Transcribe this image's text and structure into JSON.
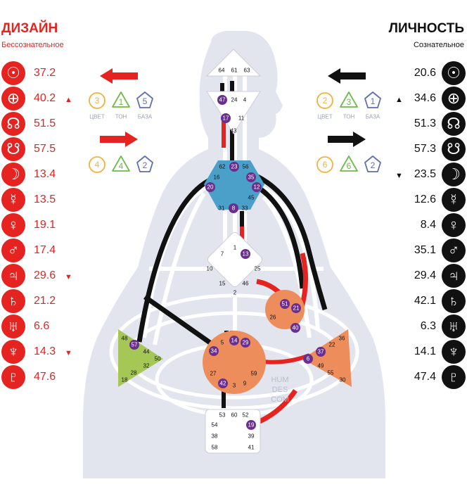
{
  "design": {
    "title": "ДИЗАЙН",
    "subtitle": "Бессознательное",
    "color": "#e52421",
    "planets": [
      {
        "icon": "sun-icon",
        "glyph": "☉",
        "value": "37.2",
        "mark": ""
      },
      {
        "icon": "earth-icon",
        "glyph": "⊕",
        "value": "40.2",
        "mark": "▲"
      },
      {
        "icon": "north-node-icon",
        "glyph": "☊",
        "value": "51.5",
        "mark": ""
      },
      {
        "icon": "south-node-icon",
        "glyph": "☋",
        "value": "57.5",
        "mark": ""
      },
      {
        "icon": "moon-icon",
        "glyph": "☽",
        "value": "13.4",
        "mark": ""
      },
      {
        "icon": "mercury-icon",
        "glyph": "☿",
        "value": "13.5",
        "mark": ""
      },
      {
        "icon": "venus-icon",
        "glyph": "♀",
        "value": "19.1",
        "mark": ""
      },
      {
        "icon": "mars-icon",
        "glyph": "♂",
        "value": "17.4",
        "mark": ""
      },
      {
        "icon": "jupiter-icon",
        "glyph": "♃",
        "value": "29.6",
        "mark": "▼"
      },
      {
        "icon": "saturn-icon",
        "glyph": "♄",
        "value": "21.2",
        "mark": ""
      },
      {
        "icon": "uranus-icon",
        "glyph": "♅",
        "value": "6.6",
        "mark": ""
      },
      {
        "icon": "neptune-icon",
        "glyph": "♆",
        "value": "14.3",
        "mark": "▼"
      },
      {
        "icon": "pluto-icon",
        "glyph": "♇",
        "value": "47.6",
        "mark": ""
      }
    ],
    "variables_top": {
      "color": "3",
      "tone": "1",
      "base": "5"
    },
    "variables_bottom": {
      "color": "4",
      "tone": "4",
      "base": "2"
    }
  },
  "personality": {
    "title": "ЛИЧНОСТЬ",
    "subtitle": "Сознательное",
    "color": "#111111",
    "planets": [
      {
        "icon": "sun-icon",
        "glyph": "☉",
        "value": "20.6",
        "mark": ""
      },
      {
        "icon": "earth-icon",
        "glyph": "⊕",
        "value": "34.6",
        "mark": "▲"
      },
      {
        "icon": "north-node-icon",
        "glyph": "☊",
        "value": "51.3",
        "mark": ""
      },
      {
        "icon": "south-node-icon",
        "glyph": "☋",
        "value": "57.3",
        "mark": ""
      },
      {
        "icon": "moon-icon",
        "glyph": "☽",
        "value": "23.5",
        "mark": "▼"
      },
      {
        "icon": "mercury-icon",
        "glyph": "☿",
        "value": "12.6",
        "mark": ""
      },
      {
        "icon": "venus-icon",
        "glyph": "♀",
        "value": "8.4",
        "mark": ""
      },
      {
        "icon": "mars-icon",
        "glyph": "♂",
        "value": "35.1",
        "mark": ""
      },
      {
        "icon": "jupiter-icon",
        "glyph": "♃",
        "value": "29.4",
        "mark": ""
      },
      {
        "icon": "saturn-icon",
        "glyph": "♄",
        "value": "42.1",
        "mark": ""
      },
      {
        "icon": "uranus-icon",
        "glyph": "♅",
        "value": "6.3",
        "mark": ""
      },
      {
        "icon": "neptune-icon",
        "glyph": "♆",
        "value": "14.1",
        "mark": ""
      },
      {
        "icon": "pluto-icon",
        "glyph": "♇",
        "value": "47.4",
        "mark": ""
      }
    ],
    "variables_top": {
      "color": "2",
      "tone": "3",
      "base": "1"
    },
    "variables_bottom": {
      "color": "6",
      "tone": "6",
      "base": "2"
    }
  },
  "labels": {
    "color": "ЦВЕТ",
    "tone": "ТОН",
    "base": "БАЗА"
  },
  "watermark": [
    "HUM",
    "DES",
    "COM"
  ],
  "colors": {
    "red": "#e52421",
    "black": "#111111",
    "purple": "#6a2f8e",
    "head": "#ffffff",
    "throat": "#4aa0c9",
    "sacral": "#ee8d5c",
    "spleen": "#a5c755",
    "body": "#e2e5ee"
  },
  "centers": {
    "head": [
      "64",
      "61",
      "63"
    ],
    "ajna": [
      "47",
      "24",
      "4",
      "17",
      "11",
      "43"
    ],
    "throat": [
      "62",
      "23",
      "56",
      "16",
      "35",
      "12",
      "20",
      "45",
      "31",
      "8",
      "33"
    ],
    "g": [
      "7",
      "1",
      "13",
      "10",
      "25",
      "15",
      "46",
      "2"
    ],
    "ego": [
      "51",
      "21",
      "26",
      "40"
    ],
    "solar_plexus": [
      "36",
      "37",
      "22",
      "6",
      "49",
      "55",
      "30"
    ],
    "spleen": [
      "48",
      "57",
      "44",
      "50",
      "32",
      "28",
      "18"
    ],
    "sacral": [
      "5",
      "14",
      "29",
      "34",
      "27",
      "59",
      "42",
      "3",
      "9"
    ],
    "root": [
      "53",
      "60",
      "52",
      "54",
      "19",
      "38",
      "39",
      "58",
      "41"
    ]
  }
}
